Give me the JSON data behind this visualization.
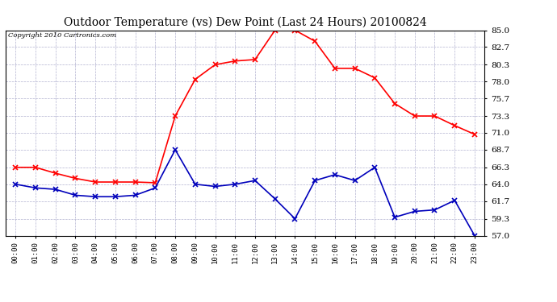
{
  "title": "Outdoor Temperature (vs) Dew Point (Last 24 Hours) 20100824",
  "copyright_text": "Copyright 2010 Cartronics.com",
  "x_labels": [
    "00:00",
    "01:00",
    "02:00",
    "03:00",
    "04:00",
    "05:00",
    "06:00",
    "07:00",
    "08:00",
    "09:00",
    "10:00",
    "11:00",
    "12:00",
    "13:00",
    "14:00",
    "15:00",
    "16:00",
    "17:00",
    "18:00",
    "19:00",
    "20:00",
    "21:00",
    "22:00",
    "23:00"
  ],
  "temp_data": [
    66.3,
    66.3,
    65.5,
    64.8,
    64.3,
    64.3,
    64.3,
    64.2,
    73.3,
    78.3,
    80.3,
    80.8,
    81.0,
    85.0,
    85.0,
    83.5,
    79.8,
    79.8,
    78.5,
    75.0,
    73.3,
    73.3,
    72.0,
    70.8
  ],
  "dew_data": [
    64.0,
    63.5,
    63.3,
    62.5,
    62.3,
    62.3,
    62.5,
    63.5,
    68.7,
    64.0,
    63.7,
    64.0,
    64.5,
    62.0,
    59.3,
    64.5,
    65.3,
    64.5,
    66.3,
    59.5,
    60.3,
    60.5,
    61.8,
    57.0
  ],
  "temp_color": "#FF0000",
  "dew_color": "#0000BB",
  "ylim": [
    57.0,
    85.0
  ],
  "yticks": [
    57.0,
    59.3,
    61.7,
    64.0,
    66.3,
    68.7,
    71.0,
    73.3,
    75.7,
    78.0,
    80.3,
    82.7,
    85.0
  ],
  "background_color": "#FFFFFF",
  "grid_color": "#AAAACC",
  "title_fontsize": 10,
  "marker": "x",
  "linewidth": 1.2,
  "fig_width": 6.9,
  "fig_height": 3.75,
  "dpi": 100
}
